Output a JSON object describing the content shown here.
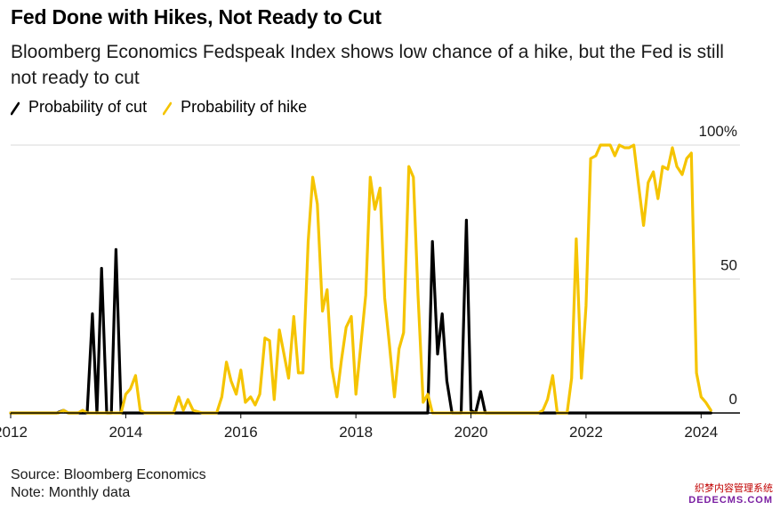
{
  "title": "Fed Done with Hikes, Not Ready to Cut",
  "subtitle": "Bloomberg Economics Fedspeak Index shows low chance of a hike, but the Fed is still not ready to cut",
  "legend": {
    "cut_label": "Probability of cut",
    "hike_label": "Probability of hike"
  },
  "footer": {
    "source": "Source: Bloomberg Economics",
    "note": "Note: Monthly data"
  },
  "watermark": {
    "line1": "织梦内容管理系统",
    "line2": "DEDECMS.COM"
  },
  "colors": {
    "cut": "#000000",
    "hike": "#f5c400",
    "grid": "#d9d9d9"
  },
  "chart_data": {
    "type": "line",
    "title": "Fed Done with Hikes, Not Ready to Cut",
    "subtitle": "Bloomberg Economics Fedspeak Index shows low chance of a hike, but the Fed is still not ready to cut",
    "xlim": [
      2012.0,
      2024.83
    ],
    "ylim": [
      0,
      100
    ],
    "x_ticks": [
      2012,
      2014,
      2016,
      2018,
      2020,
      2022,
      2024
    ],
    "y_ticks": [
      {
        "value": 0,
        "label": "0"
      },
      {
        "value": 50,
        "label": "50"
      },
      {
        "value": 100,
        "label": "100%"
      }
    ],
    "grid": true,
    "legend": "top-left",
    "series": [
      {
        "name": "Probability of cut",
        "color": "#000000",
        "points": [
          [
            2012.0,
            0
          ],
          [
            2012.8,
            0
          ],
          [
            2012.92,
            1
          ],
          [
            2013.0,
            0
          ],
          [
            2013.33,
            0
          ],
          [
            2013.42,
            37
          ],
          [
            2013.5,
            0
          ],
          [
            2013.58,
            54
          ],
          [
            2013.67,
            0
          ],
          [
            2013.75,
            0
          ],
          [
            2013.83,
            61
          ],
          [
            2013.92,
            0
          ],
          [
            2014.0,
            0
          ],
          [
            2019.25,
            0
          ],
          [
            2019.33,
            64
          ],
          [
            2019.42,
            22
          ],
          [
            2019.5,
            37
          ],
          [
            2019.58,
            12
          ],
          [
            2019.67,
            0
          ],
          [
            2019.83,
            0
          ],
          [
            2019.92,
            72
          ],
          [
            2020.0,
            1
          ],
          [
            2020.08,
            0
          ],
          [
            2020.17,
            8
          ],
          [
            2020.25,
            0
          ],
          [
            2024.17,
            0
          ]
        ]
      },
      {
        "name": "Probability of hike",
        "color": "#f5c400",
        "points": [
          [
            2012.0,
            0
          ],
          [
            2012.83,
            0
          ],
          [
            2012.92,
            1
          ],
          [
            2013.0,
            0
          ],
          [
            2013.17,
            0
          ],
          [
            2013.25,
            1
          ],
          [
            2013.33,
            0
          ],
          [
            2013.75,
            0
          ],
          [
            2013.92,
            0
          ],
          [
            2014.0,
            7
          ],
          [
            2014.08,
            9
          ],
          [
            2014.17,
            14
          ],
          [
            2014.25,
            1
          ],
          [
            2014.33,
            0
          ],
          [
            2014.83,
            0
          ],
          [
            2014.92,
            6
          ],
          [
            2015.0,
            1
          ],
          [
            2015.08,
            5
          ],
          [
            2015.17,
            1
          ],
          [
            2015.33,
            0
          ],
          [
            2015.58,
            0
          ],
          [
            2015.67,
            6
          ],
          [
            2015.75,
            19
          ],
          [
            2015.83,
            12
          ],
          [
            2015.92,
            7
          ],
          [
            2016.0,
            16
          ],
          [
            2016.08,
            4
          ],
          [
            2016.17,
            6
          ],
          [
            2016.25,
            3
          ],
          [
            2016.33,
            7
          ],
          [
            2016.42,
            28
          ],
          [
            2016.5,
            27
          ],
          [
            2016.58,
            5
          ],
          [
            2016.67,
            31
          ],
          [
            2016.75,
            22
          ],
          [
            2016.83,
            13
          ],
          [
            2016.92,
            36
          ],
          [
            2017.0,
            15
          ],
          [
            2017.08,
            15
          ],
          [
            2017.17,
            64
          ],
          [
            2017.25,
            88
          ],
          [
            2017.33,
            78
          ],
          [
            2017.42,
            38
          ],
          [
            2017.5,
            46
          ],
          [
            2017.58,
            17
          ],
          [
            2017.67,
            6
          ],
          [
            2017.75,
            20
          ],
          [
            2017.83,
            32
          ],
          [
            2017.92,
            36
          ],
          [
            2018.0,
            7
          ],
          [
            2018.08,
            24
          ],
          [
            2018.17,
            44
          ],
          [
            2018.25,
            88
          ],
          [
            2018.33,
            76
          ],
          [
            2018.42,
            84
          ],
          [
            2018.5,
            43
          ],
          [
            2018.58,
            26
          ],
          [
            2018.67,
            6
          ],
          [
            2018.75,
            24
          ],
          [
            2018.83,
            30
          ],
          [
            2018.92,
            92
          ],
          [
            2019.0,
            88
          ],
          [
            2019.08,
            44
          ],
          [
            2019.17,
            4
          ],
          [
            2019.25,
            7
          ],
          [
            2019.33,
            0
          ],
          [
            2021.17,
            0
          ],
          [
            2021.25,
            1
          ],
          [
            2021.33,
            5
          ],
          [
            2021.42,
            14
          ],
          [
            2021.5,
            0
          ],
          [
            2021.67,
            0
          ],
          [
            2021.75,
            13
          ],
          [
            2021.83,
            65
          ],
          [
            2021.92,
            13
          ],
          [
            2022.0,
            40
          ],
          [
            2022.08,
            95
          ],
          [
            2022.17,
            96
          ],
          [
            2022.25,
            100
          ],
          [
            2022.33,
            100
          ],
          [
            2022.42,
            100
          ],
          [
            2022.5,
            96
          ],
          [
            2022.58,
            100
          ],
          [
            2022.67,
            99
          ],
          [
            2022.75,
            99
          ],
          [
            2022.83,
            100
          ],
          [
            2022.92,
            84
          ],
          [
            2023.0,
            70
          ],
          [
            2023.08,
            86
          ],
          [
            2023.17,
            90
          ],
          [
            2023.25,
            80
          ],
          [
            2023.33,
            92
          ],
          [
            2023.42,
            91
          ],
          [
            2023.5,
            99
          ],
          [
            2023.58,
            92
          ],
          [
            2023.67,
            89
          ],
          [
            2023.75,
            95
          ],
          [
            2023.83,
            97
          ],
          [
            2023.92,
            15
          ],
          [
            2024.0,
            6
          ],
          [
            2024.08,
            4
          ],
          [
            2024.17,
            1
          ]
        ]
      }
    ]
  }
}
